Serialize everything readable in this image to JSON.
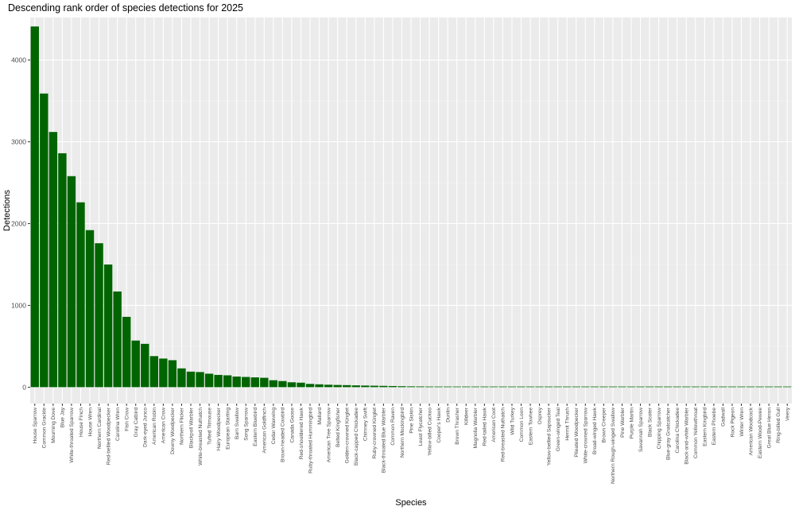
{
  "chart_data": {
    "type": "bar",
    "title": "Descending rank order of species detections for 2025",
    "xlabel": "Species",
    "ylabel": "Detections",
    "ylim": [
      -200,
      4520
    ],
    "yticks": [
      0,
      1000,
      2000,
      3000,
      4000
    ],
    "grid": true,
    "legend": "none",
    "bar_color": "#006400",
    "panel_background": "#ebebeb",
    "categories": [
      "House Sparrow",
      "Common Grackle",
      "Mourning Dove",
      "Blue Jay",
      "White-throated Sparrow",
      "House Finch",
      "House Wren",
      "Northern Cardinal",
      "Red-bellied Woodpecker",
      "Carolina Wren",
      "Fish Crow",
      "Gray Catbird",
      "Dark-eyed Junco",
      "American Robin",
      "American Crow",
      "Downy Woodpecker",
      "Northern Flicker",
      "Blackpoll Warbler",
      "White-breasted Nuthatch",
      "Tufted Titmouse",
      "Hairy Woodpecker",
      "European Starling",
      "Barn Swallow",
      "Song Sparrow",
      "Eastern Bluebird",
      "American Goldfinch",
      "Cedar Waxwing",
      "Brown-headed Cowbird",
      "Canada Goose",
      "Red-shouldered Hawk",
      "Ruby-throated Hummingbird",
      "Mallard",
      "American Tree Sparrow",
      "Belted Kingfisher",
      "Golden-crowned Kinglet",
      "Black-capped Chickadee",
      "Chimney Swift",
      "Ruby-crowned Kinglet",
      "Black-throated Blue Warbler",
      "Common Raven",
      "Northern Mockingbird",
      "Pine Siskin",
      "Least Flycatcher",
      "Yellow-billed Cuckoo",
      "Cooper's Hawk",
      "Dunlin",
      "Brown Thrasher",
      "Killdeer",
      "Magnolia Warbler",
      "Red-tailed Hawk",
      "American Coot",
      "Red-breasted Nuthatch",
      "Wild Turkey",
      "Common Loon",
      "Eastern Towhee",
      "Osprey",
      "Yellow-bellied Sapsucker",
      "Green-winged Teal",
      "Hermit Thrush",
      "Pileated Woodpecker",
      "White-crowned Sparrow",
      "Broad-winged Hawk",
      "Brown Creeper",
      "Northern Rough-winged Swallow",
      "Pine Warbler",
      "Purple Martin",
      "Savannah Sparrow",
      "Black Scoter",
      "Chipping Sparrow",
      "Blue-gray Gnatcatcher",
      "Carolina Chickadee",
      "Black-and-white Warbler",
      "Common Yellowthroat",
      "Eastern Kingbird",
      "Eastern Phoebe",
      "Gadwall",
      "Rock Pigeon",
      "Winter Wren",
      "American Woodcock",
      "Eastern Wood-Pewee",
      "Great Blue Heron",
      "Ring-billed Gull",
      "Veery"
    ],
    "values": [
      4410,
      3590,
      3120,
      2860,
      2580,
      2260,
      1920,
      1760,
      1500,
      1170,
      860,
      570,
      530,
      380,
      350,
      330,
      230,
      190,
      185,
      165,
      150,
      145,
      130,
      125,
      120,
      115,
      85,
      75,
      60,
      55,
      40,
      35,
      30,
      27,
      25,
      22,
      20,
      18,
      16,
      14,
      12,
      10,
      9,
      8,
      7,
      6,
      6,
      5,
      5,
      4,
      4,
      4,
      3,
      3,
      3,
      3,
      2,
      2,
      2,
      2,
      2,
      2,
      2,
      2,
      1,
      1,
      1,
      1,
      1,
      1,
      1,
      1,
      1,
      1,
      1,
      1,
      1,
      1,
      1,
      1,
      1,
      1,
      1
    ]
  }
}
